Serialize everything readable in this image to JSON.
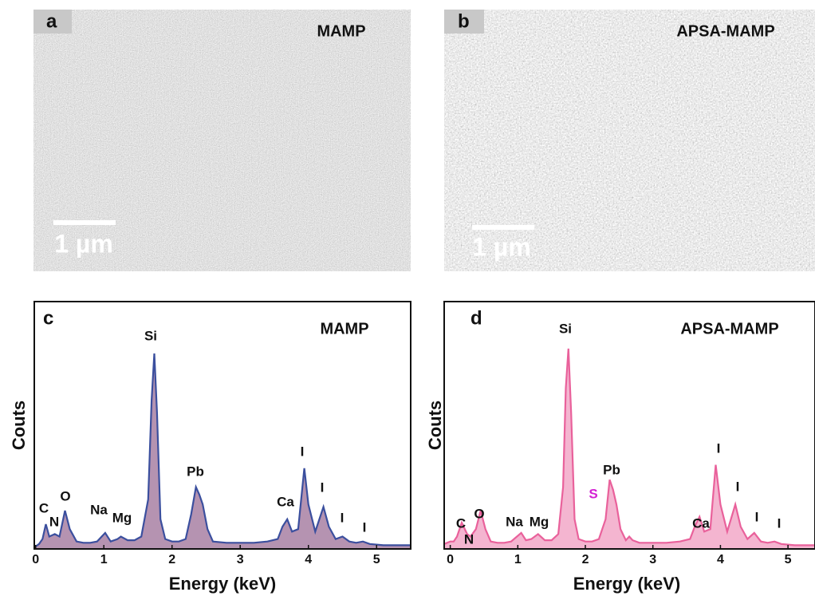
{
  "panels": [
    {
      "label": "a",
      "title": "MAMP",
      "scale_bar": "1 µm"
    },
    {
      "label": "b",
      "title": "APSA-MAMP",
      "scale_bar": "1 µm"
    }
  ],
  "chart_data": [
    {
      "type": "area",
      "panel_label": "c",
      "title": "MAMP",
      "xlabel": "Energy (keV)",
      "ylabel": "Couts",
      "x": [
        0,
        0.05,
        0.1,
        0.15,
        0.2,
        0.28,
        0.35,
        0.43,
        0.5,
        0.6,
        0.7,
        0.8,
        0.9,
        1.02,
        1.1,
        1.2,
        1.25,
        1.35,
        1.45,
        1.55,
        1.65,
        1.7,
        1.74,
        1.78,
        1.83,
        1.9,
        2.0,
        2.1,
        2.2,
        2.28,
        2.35,
        2.4,
        2.45,
        2.52,
        2.6,
        2.8,
        3.0,
        3.2,
        3.4,
        3.55,
        3.62,
        3.69,
        3.76,
        3.85,
        3.94,
        4.0,
        4.1,
        4.22,
        4.3,
        4.4,
        4.5,
        4.6,
        4.7,
        4.8,
        4.9,
        5.1,
        5.3,
        5.5
      ],
      "values": [
        1,
        2,
        4,
        10,
        5,
        6,
        5,
        15.5,
        8,
        3,
        2.5,
        2.5,
        3,
        6.5,
        3,
        4,
        5,
        3.5,
        3.5,
        5,
        20,
        60,
        79,
        55,
        12,
        4,
        3,
        3,
        4,
        14,
        25,
        22,
        18,
        8,
        3,
        2.5,
        2.5,
        2.5,
        3,
        4,
        9,
        12,
        7,
        8,
        32.6,
        18,
        7,
        17,
        9,
        4,
        5,
        3,
        2.5,
        3,
        2,
        1.5,
        1.5,
        1.5
      ],
      "color": "#3b4f9e",
      "fill": "#9c6f97",
      "xlim": [
        -0.02,
        5.5
      ],
      "ylim": [
        0,
        100
      ],
      "xticks": [
        0,
        1,
        2,
        3,
        4,
        5
      ],
      "peak_labels": [
        "C",
        "N",
        "O",
        "Na",
        "Mg",
        "Si",
        "Pb",
        "Ca",
        "I",
        "I",
        "I",
        "I"
      ]
    },
    {
      "type": "area",
      "panel_label": "d",
      "title": "APSA-MAMP",
      "xlabel": "Energy (keV)",
      "ylabel": "Couts",
      "x": [
        -0.09,
        0,
        0.05,
        0.1,
        0.17,
        0.25,
        0.3,
        0.38,
        0.45,
        0.52,
        0.6,
        0.7,
        0.8,
        0.9,
        1.05,
        1.12,
        1.2,
        1.3,
        1.4,
        1.5,
        1.6,
        1.67,
        1.71,
        1.75,
        1.79,
        1.84,
        1.9,
        2.0,
        2.1,
        2.2,
        2.3,
        2.36,
        2.41,
        2.46,
        2.52,
        2.6,
        2.65,
        2.7,
        2.8,
        3.0,
        3.2,
        3.4,
        3.55,
        3.62,
        3.69,
        3.76,
        3.85,
        3.93,
        4.0,
        4.1,
        4.22,
        4.3,
        4.4,
        4.5,
        4.6,
        4.7,
        4.8,
        4.9,
        5.1,
        5.3,
        5.4
      ],
      "values": [
        2,
        3,
        3,
        5,
        10.6,
        6,
        5,
        8,
        15.5,
        8,
        3,
        2.5,
        2.5,
        3,
        6.5,
        3.5,
        4,
        6,
        3.5,
        3.5,
        6,
        25,
        65,
        81,
        55,
        12,
        4,
        3,
        3,
        4,
        12,
        28,
        24,
        18,
        8,
        3.5,
        5,
        3.5,
        2.5,
        2.5,
        2.5,
        3,
        4,
        9,
        13,
        7,
        8,
        34,
        18,
        7,
        18,
        9,
        4,
        6.5,
        3,
        2.5,
        3,
        2,
        1.5,
        1.5,
        1.5
      ],
      "color": "#e9619b",
      "fill": "#f09cc0",
      "xlim": [
        -0.09,
        5.4
      ],
      "ylim": [
        0,
        100
      ],
      "xticks": [
        0,
        1,
        2,
        3,
        4,
        5
      ],
      "peak_labels": [
        "C",
        "N",
        "O",
        "Na",
        "Mg",
        "Si",
        "S",
        "Pb",
        "Ca",
        "I",
        "I",
        "I",
        "I"
      ]
    }
  ]
}
